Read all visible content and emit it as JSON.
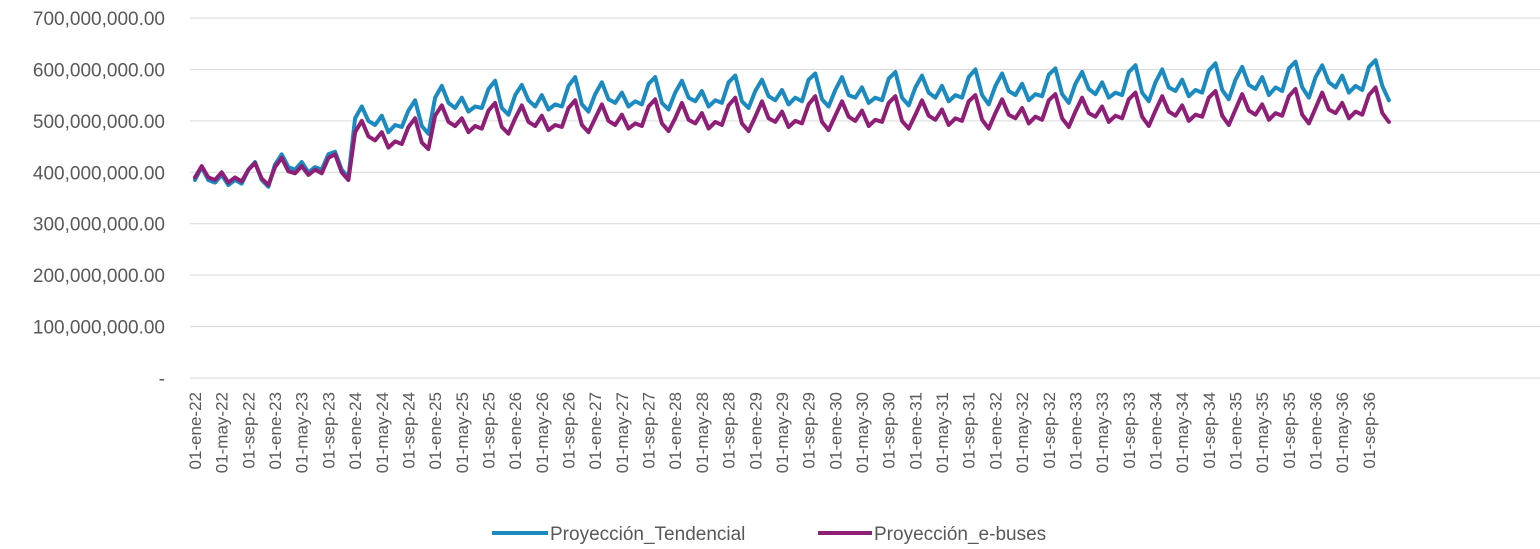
{
  "chart_data": {
    "type": "line",
    "title": "",
    "xlabel": "",
    "ylabel": "",
    "ylim": [
      0,
      700000000
    ],
    "y_ticks": [
      {
        "value": 0,
        "label": "-"
      },
      {
        "value": 100000000,
        "label": "100,000,000.00"
      },
      {
        "value": 200000000,
        "label": "200,000,000.00"
      },
      {
        "value": 300000000,
        "label": "300,000,000.00"
      },
      {
        "value": 400000000,
        "label": "400,000,000.00"
      },
      {
        "value": 500000000,
        "label": "500,000,000.00"
      },
      {
        "value": 600000000,
        "label": "600,000,000.00"
      },
      {
        "value": 700000000,
        "label": "700,000,000.00"
      }
    ],
    "x_tick_labels": [
      "01-ene-22",
      "01-may-22",
      "01-sep-22",
      "01-ene-23",
      "01-may-23",
      "01-sep-23",
      "01-ene-24",
      "01-may-24",
      "01-sep-24",
      "01-ene-25",
      "01-may-25",
      "01-sep-25",
      "01-ene-26",
      "01-may-26",
      "01-sep-26",
      "01-ene-27",
      "01-may-27",
      "01-sep-27",
      "01-ene-28",
      "01-may-28",
      "01-sep-28",
      "01-ene-29",
      "01-may-29",
      "01-sep-29",
      "01-ene-30",
      "01-may-30",
      "01-sep-30",
      "01-ene-31",
      "01-may-31",
      "01-sep-31",
      "01-ene-32",
      "01-may-32",
      "01-sep-32",
      "01-ene-33",
      "01-may-33",
      "01-sep-33",
      "01-ene-34",
      "01-may-34",
      "01-sep-34",
      "01-ene-35",
      "01-may-35",
      "01-sep-35",
      "01-ene-36",
      "01-may-36",
      "01-sep-36"
    ],
    "x": [
      "2022-01",
      "2022-02",
      "2022-03",
      "2022-04",
      "2022-05",
      "2022-06",
      "2022-07",
      "2022-08",
      "2022-09",
      "2022-10",
      "2022-11",
      "2022-12",
      "2023-01",
      "2023-02",
      "2023-03",
      "2023-04",
      "2023-05",
      "2023-06",
      "2023-07",
      "2023-08",
      "2023-09",
      "2023-10",
      "2023-11",
      "2023-12",
      "2024-01",
      "2024-02",
      "2024-03",
      "2024-04",
      "2024-05",
      "2024-06",
      "2024-07",
      "2024-08",
      "2024-09",
      "2024-10",
      "2024-11",
      "2024-12",
      "2025-01",
      "2025-02",
      "2025-03",
      "2025-04",
      "2025-05",
      "2025-06",
      "2025-07",
      "2025-08",
      "2025-09",
      "2025-10",
      "2025-11",
      "2025-12",
      "2026-01",
      "2026-02",
      "2026-03",
      "2026-04",
      "2026-05",
      "2026-06",
      "2026-07",
      "2026-08",
      "2026-09",
      "2026-10",
      "2026-11",
      "2026-12",
      "2027-01",
      "2027-02",
      "2027-03",
      "2027-04",
      "2027-05",
      "2027-06",
      "2027-07",
      "2027-08",
      "2027-09",
      "2027-10",
      "2027-11",
      "2027-12",
      "2028-01",
      "2028-02",
      "2028-03",
      "2028-04",
      "2028-05",
      "2028-06",
      "2028-07",
      "2028-08",
      "2028-09",
      "2028-10",
      "2028-11",
      "2028-12",
      "2029-01",
      "2029-02",
      "2029-03",
      "2029-04",
      "2029-05",
      "2029-06",
      "2029-07",
      "2029-08",
      "2029-09",
      "2029-10",
      "2029-11",
      "2029-12",
      "2030-01",
      "2030-02",
      "2030-03",
      "2030-04",
      "2030-05",
      "2030-06",
      "2030-07",
      "2030-08",
      "2030-09",
      "2030-10",
      "2030-11",
      "2030-12",
      "2031-01",
      "2031-02",
      "2031-03",
      "2031-04",
      "2031-05",
      "2031-06",
      "2031-07",
      "2031-08",
      "2031-09",
      "2031-10",
      "2031-11",
      "2031-12",
      "2032-01",
      "2032-02",
      "2032-03",
      "2032-04",
      "2032-05",
      "2032-06",
      "2032-07",
      "2032-08",
      "2032-09",
      "2032-10",
      "2032-11",
      "2032-12",
      "2033-01",
      "2033-02",
      "2033-03",
      "2033-04",
      "2033-05",
      "2033-06",
      "2033-07",
      "2033-08",
      "2033-09",
      "2033-10",
      "2033-11",
      "2033-12",
      "2034-01",
      "2034-02",
      "2034-03",
      "2034-04",
      "2034-05",
      "2034-06",
      "2034-07",
      "2034-08",
      "2034-09",
      "2034-10",
      "2034-11",
      "2034-12",
      "2035-01",
      "2035-02",
      "2035-03",
      "2035-04",
      "2035-05",
      "2035-06",
      "2035-07",
      "2035-08",
      "2035-09",
      "2035-10",
      "2035-11",
      "2035-12",
      "2036-01",
      "2036-02",
      "2036-03",
      "2036-04",
      "2036-05",
      "2036-06",
      "2036-07",
      "2036-08",
      "2036-09",
      "2036-10",
      "2036-11",
      "2036-12"
    ],
    "series": [
      {
        "name": "Proyección_Tendencial",
        "color": "#1a8ac1",
        "values": [
          385000000,
          410000000,
          385000000,
          380000000,
          395000000,
          375000000,
          385000000,
          378000000,
          405000000,
          420000000,
          385000000,
          372000000,
          415000000,
          435000000,
          410000000,
          405000000,
          420000000,
          400000000,
          410000000,
          405000000,
          435000000,
          440000000,
          405000000,
          390000000,
          505000000,
          528000000,
          500000000,
          492000000,
          510000000,
          478000000,
          492000000,
          488000000,
          520000000,
          540000000,
          490000000,
          475000000,
          545000000,
          568000000,
          535000000,
          525000000,
          545000000,
          518000000,
          528000000,
          525000000,
          562000000,
          578000000,
          525000000,
          512000000,
          550000000,
          570000000,
          540000000,
          528000000,
          550000000,
          522000000,
          532000000,
          528000000,
          568000000,
          585000000,
          532000000,
          518000000,
          552000000,
          575000000,
          542000000,
          535000000,
          555000000,
          528000000,
          538000000,
          532000000,
          572000000,
          585000000,
          535000000,
          522000000,
          555000000,
          578000000,
          545000000,
          538000000,
          558000000,
          528000000,
          540000000,
          535000000,
          575000000,
          588000000,
          538000000,
          525000000,
          558000000,
          580000000,
          548000000,
          540000000,
          560000000,
          532000000,
          545000000,
          538000000,
          580000000,
          592000000,
          542000000,
          528000000,
          560000000,
          585000000,
          550000000,
          545000000,
          565000000,
          535000000,
          545000000,
          540000000,
          582000000,
          595000000,
          545000000,
          530000000,
          565000000,
          588000000,
          555000000,
          545000000,
          568000000,
          538000000,
          550000000,
          545000000,
          585000000,
          600000000,
          550000000,
          532000000,
          568000000,
          592000000,
          558000000,
          550000000,
          572000000,
          540000000,
          552000000,
          548000000,
          590000000,
          602000000,
          552000000,
          535000000,
          572000000,
          595000000,
          562000000,
          552000000,
          575000000,
          545000000,
          555000000,
          550000000,
          595000000,
          608000000,
          555000000,
          538000000,
          575000000,
          600000000,
          565000000,
          558000000,
          580000000,
          548000000,
          560000000,
          555000000,
          598000000,
          612000000,
          560000000,
          542000000,
          580000000,
          605000000,
          570000000,
          562000000,
          585000000,
          550000000,
          565000000,
          558000000,
          602000000,
          615000000,
          565000000,
          545000000,
          585000000,
          608000000,
          575000000,
          565000000,
          588000000,
          555000000,
          568000000,
          560000000,
          605000000,
          618000000,
          568000000,
          540000000
        ]
      },
      {
        "name": "Proyección_e-buses",
        "color": "#8e1e76",
        "values": [
          390000000,
          412000000,
          390000000,
          385000000,
          400000000,
          380000000,
          390000000,
          382000000,
          405000000,
          418000000,
          388000000,
          375000000,
          410000000,
          428000000,
          402000000,
          398000000,
          412000000,
          395000000,
          405000000,
          398000000,
          428000000,
          435000000,
          400000000,
          385000000,
          478000000,
          500000000,
          470000000,
          462000000,
          478000000,
          448000000,
          460000000,
          455000000,
          488000000,
          505000000,
          458000000,
          445000000,
          510000000,
          530000000,
          498000000,
          490000000,
          505000000,
          478000000,
          490000000,
          485000000,
          520000000,
          535000000,
          488000000,
          475000000,
          505000000,
          530000000,
          498000000,
          490000000,
          510000000,
          482000000,
          492000000,
          488000000,
          525000000,
          540000000,
          492000000,
          478000000,
          505000000,
          532000000,
          500000000,
          492000000,
          512000000,
          485000000,
          495000000,
          490000000,
          528000000,
          542000000,
          495000000,
          480000000,
          505000000,
          535000000,
          502000000,
          495000000,
          515000000,
          485000000,
          498000000,
          492000000,
          530000000,
          545000000,
          495000000,
          480000000,
          508000000,
          538000000,
          505000000,
          498000000,
          518000000,
          488000000,
          500000000,
          495000000,
          532000000,
          548000000,
          498000000,
          482000000,
          510000000,
          538000000,
          508000000,
          500000000,
          520000000,
          490000000,
          502000000,
          498000000,
          535000000,
          548000000,
          500000000,
          485000000,
          512000000,
          540000000,
          510000000,
          502000000,
          522000000,
          492000000,
          505000000,
          500000000,
          538000000,
          550000000,
          502000000,
          485000000,
          515000000,
          542000000,
          512000000,
          505000000,
          525000000,
          495000000,
          508000000,
          502000000,
          540000000,
          552000000,
          505000000,
          488000000,
          518000000,
          545000000,
          515000000,
          508000000,
          528000000,
          498000000,
          510000000,
          505000000,
          542000000,
          555000000,
          508000000,
          490000000,
          520000000,
          548000000,
          518000000,
          510000000,
          530000000,
          500000000,
          512000000,
          508000000,
          545000000,
          558000000,
          510000000,
          492000000,
          522000000,
          552000000,
          520000000,
          512000000,
          532000000,
          502000000,
          515000000,
          510000000,
          548000000,
          562000000,
          512000000,
          495000000,
          525000000,
          555000000,
          522000000,
          515000000,
          535000000,
          505000000,
          518000000,
          512000000,
          550000000,
          565000000,
          515000000,
          498000000
        ]
      }
    ],
    "grid": true,
    "legend_position": "bottom"
  }
}
